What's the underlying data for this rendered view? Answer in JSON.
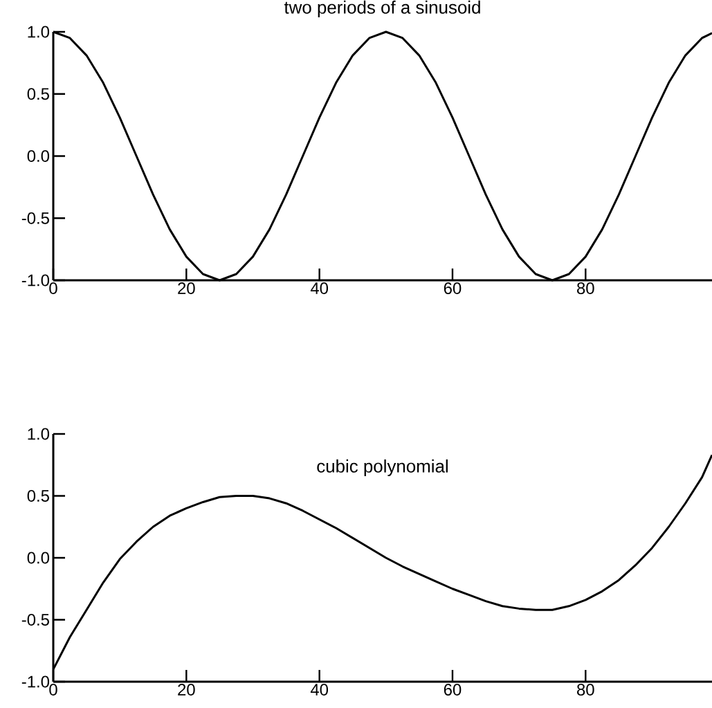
{
  "chart_data": [
    {
      "type": "line",
      "title": "two periods of a sinusoid",
      "color": "#000000",
      "x": [
        0,
        2.5,
        5,
        7.5,
        10,
        12.5,
        15,
        17.5,
        20,
        22.5,
        25,
        27.5,
        30,
        32.5,
        35,
        37.5,
        40,
        42.5,
        45,
        47.5,
        50,
        52.5,
        55,
        57.5,
        60,
        62.5,
        65,
        67.5,
        70,
        72.5,
        75,
        77.5,
        80,
        82.5,
        85,
        87.5,
        90,
        92.5,
        95,
        97.5,
        99
      ],
      "values": [
        1,
        0.95,
        0.81,
        0.59,
        0.31,
        0,
        -0.31,
        -0.59,
        -0.81,
        -0.95,
        -1,
        -0.95,
        -0.81,
        -0.59,
        -0.31,
        0,
        0.31,
        0.59,
        0.81,
        0.95,
        1,
        0.95,
        0.81,
        0.59,
        0.31,
        0,
        -0.31,
        -0.59,
        -0.81,
        -0.95,
        -1,
        -0.95,
        -0.81,
        -0.59,
        -0.31,
        0,
        0.31,
        0.59,
        0.81,
        0.95,
        0.99
      ],
      "xlim": [
        0,
        99
      ],
      "ylim": [
        -1,
        1
      ],
      "xticks": [
        0,
        20,
        40,
        60,
        80
      ],
      "yticks": [
        {
          "value": -1,
          "label": "-1.0"
        },
        {
          "value": -0.5,
          "label": "-0.5"
        },
        {
          "value": 0,
          "label": "0.0"
        },
        {
          "value": 0.5,
          "label": "0.5"
        },
        {
          "value": 1,
          "label": "1.0"
        }
      ]
    },
    {
      "type": "line",
      "title": "cubic polynomial",
      "color": "#000000",
      "x": [
        0,
        2.5,
        5,
        7.5,
        10,
        12.5,
        15,
        17.5,
        20,
        22.5,
        25,
        27.5,
        30,
        32.5,
        35,
        37.5,
        40,
        42.5,
        45,
        47.5,
        50,
        52.5,
        55,
        57.5,
        60,
        62.5,
        65,
        67.5,
        70,
        72.5,
        75,
        77.5,
        80,
        82.5,
        85,
        87.5,
        90,
        92.5,
        95,
        97.5,
        99
      ],
      "values": [
        -0.9,
        -0.64,
        -0.42,
        -0.2,
        -0.01,
        0.13,
        0.25,
        0.34,
        0.4,
        0.45,
        0.49,
        0.5,
        0.5,
        0.48,
        0.44,
        0.38,
        0.31,
        0.24,
        0.16,
        0.08,
        0,
        -0.07,
        -0.13,
        -0.19,
        -0.25,
        -0.3,
        -0.35,
        -0.39,
        -0.41,
        -0.42,
        -0.42,
        -0.39,
        -0.34,
        -0.27,
        -0.18,
        -0.06,
        0.08,
        0.25,
        0.44,
        0.65,
        0.83
      ],
      "xlim": [
        0,
        99
      ],
      "ylim": [
        -1,
        1
      ],
      "xticks": [
        0,
        20,
        40,
        60,
        80
      ],
      "yticks": [
        {
          "value": -1,
          "label": "-1.0"
        },
        {
          "value": -0.5,
          "label": "-0.5"
        },
        {
          "value": 0,
          "label": "0.0"
        },
        {
          "value": 0.5,
          "label": "0.5"
        },
        {
          "value": 1,
          "label": "1.0"
        }
      ]
    }
  ]
}
